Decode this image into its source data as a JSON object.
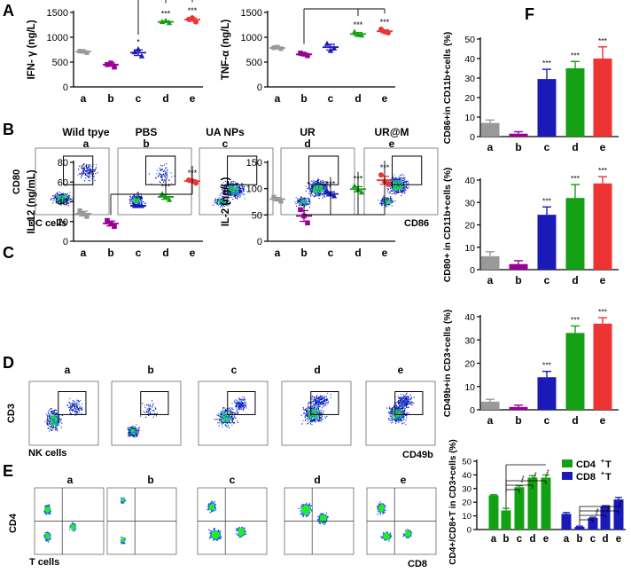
{
  "panel_letters": [
    "A",
    "B",
    "C",
    "D",
    "E",
    "F"
  ],
  "colors": {
    "a": "#999999",
    "b": "#990099",
    "c": "#1a1ab8",
    "d": "#14a014",
    "e": "#ee3333",
    "dot_low": "#0a0a90",
    "dot_mid": "#1a56ff",
    "dot_high": "#22ee22"
  },
  "flow_B": {
    "group_titles": [
      "Wild tpye",
      "PBS",
      "UA NPs",
      "UR",
      "UR@M"
    ],
    "group_letters": [
      "a",
      "b",
      "c",
      "d",
      "e"
    ],
    "ylabel": "CD80",
    "xlabel": "CD86",
    "caption": "DC cells"
  },
  "flow_D": {
    "group_letters": [
      "a",
      "b",
      "c",
      "d",
      "e"
    ],
    "ylabel": "CD3",
    "xlabel": "CD49b",
    "caption": "NK cells"
  },
  "flow_E": {
    "group_letters": [
      "a",
      "b",
      "c",
      "d",
      "e"
    ],
    "ylabel": "CD4",
    "xlabel": "CD8",
    "caption": "T cells"
  },
  "chart_data": [
    {
      "id": "A1",
      "type": "scatter",
      "ylabel": "IFN- γ (ng/L)",
      "ylim": [
        0,
        1500
      ],
      "yticks": [
        0,
        500,
        1000,
        1500
      ],
      "categories": [
        "a",
        "b",
        "c",
        "d",
        "e"
      ],
      "means": [
        710,
        450,
        690,
        1310,
        1355
      ],
      "points": [
        [
          720,
          690,
          715
        ],
        [
          450,
          400,
          480
        ],
        [
          700,
          620,
          760
        ],
        [
          1310,
          1290,
          1330
        ],
        [
          1360,
          1310,
          1390
        ]
      ],
      "sig": [
        "",
        "",
        "*",
        "***",
        "***"
      ]
    },
    {
      "id": "A2",
      "type": "scatter",
      "ylabel": "TNF-α (ng/L)",
      "ylim": [
        0,
        1500
      ],
      "yticks": [
        0,
        500,
        1000,
        1500
      ],
      "categories": [
        "a",
        "b",
        "c",
        "d",
        "e"
      ],
      "means": [
        785,
        655,
        800,
        1065,
        1120
      ],
      "points": [
        [
          790,
          770,
          800
        ],
        [
          680,
          630,
          660
        ],
        [
          870,
          780,
          730
        ],
        [
          1110,
          1040,
          1050
        ],
        [
          1160,
          1090,
          1110
        ]
      ],
      "sig": [
        "",
        "",
        "",
        "***",
        "***"
      ]
    },
    {
      "id": "C1",
      "type": "scatter",
      "ylabel": "IL-12 (ng/mL)",
      "ylim": [
        0,
        80
      ],
      "yticks": [
        0,
        20,
        40,
        60,
        80
      ],
      "categories": [
        "a",
        "b",
        "c",
        "d",
        "e"
      ],
      "means": [
        28,
        18,
        36,
        45,
        61
      ],
      "points": [
        [
          31,
          25,
          28
        ],
        [
          21,
          15,
          18
        ],
        [
          36,
          36,
          36
        ],
        [
          48,
          42,
          45
        ],
        [
          62,
          59,
          61
        ]
      ],
      "sig": [
        "",
        "",
        "**",
        "***",
        "***"
      ]
    },
    {
      "id": "C2",
      "type": "scatter",
      "ylabel": "IL-2 (ng/L)",
      "ylim": [
        0,
        150
      ],
      "yticks": [
        0,
        50,
        100,
        150
      ],
      "categories": [
        "a",
        "b",
        "c",
        "d",
        "e"
      ],
      "means": [
        80,
        48,
        90,
        99,
        116
      ],
      "points": [
        [
          84,
          76,
          80
        ],
        [
          60,
          35,
          48
        ],
        [
          95,
          86,
          90
        ],
        [
          105,
          93,
          99
        ],
        [
          126,
          108,
          114
        ]
      ],
      "sig": [
        "",
        "",
        "***",
        "***",
        "***"
      ]
    },
    {
      "id": "F1",
      "type": "bar",
      "ylabel": "CD86+in CD11b+cells (%)",
      "ylim": [
        0,
        50
      ],
      "yticks": [
        0,
        10,
        20,
        30,
        40,
        50
      ],
      "categories": [
        "a",
        "b",
        "c",
        "d",
        "e"
      ],
      "values": [
        7,
        1.5,
        29.5,
        35,
        40
      ],
      "errors": [
        1.5,
        1,
        5,
        3.5,
        6
      ],
      "sig": [
        "",
        "",
        "***",
        "***",
        "***"
      ]
    },
    {
      "id": "F2",
      "type": "bar",
      "ylabel": "CD80+ in CD11b+cells (%)",
      "ylim": [
        0,
        40
      ],
      "yticks": [
        0,
        10,
        20,
        30,
        40
      ],
      "categories": [
        "a",
        "b",
        "c",
        "d",
        "e"
      ],
      "values": [
        6,
        2.5,
        24.5,
        32,
        38.5
      ],
      "errors": [
        2,
        1.5,
        3.5,
        6,
        3
      ],
      "sig": [
        "",
        "",
        "***",
        "***",
        "***"
      ]
    },
    {
      "id": "F3",
      "type": "bar",
      "ylabel": "CD49b+in CD3+cells (%)",
      "ylim": [
        0,
        40
      ],
      "yticks": [
        0,
        10,
        20,
        30,
        40
      ],
      "categories": [
        "a",
        "b",
        "c",
        "d",
        "e"
      ],
      "values": [
        3.5,
        1.2,
        14,
        33,
        37
      ],
      "errors": [
        1,
        0.8,
        2.5,
        3,
        2.5
      ],
      "sig": [
        "",
        "",
        "***",
        "***",
        "***"
      ]
    },
    {
      "id": "F4",
      "type": "bar",
      "ylabel": "CD4+/CD8+T in CD3+cells (%)",
      "ylim": [
        0,
        50
      ],
      "yticks": [
        0,
        10,
        20,
        30,
        40,
        50
      ],
      "categories": [
        "a",
        "b",
        "c",
        "d",
        "e"
      ],
      "series": [
        {
          "name": "CD4+T",
          "values": [
            25,
            14,
            31,
            38,
            38
          ],
          "errors": [
            0.5,
            1.5,
            1,
            1.5,
            2
          ]
        },
        {
          "name": "CD8+T",
          "values": [
            11.5,
            2,
            8.5,
            17,
            22
          ],
          "errors": [
            1,
            0.5,
            0.5,
            0.5,
            1.5
          ]
        }
      ],
      "sig": [
        "***",
        "***",
        "***",
        "***",
        "***",
        "***",
        "***",
        "***"
      ],
      "legend": [
        "CD4",
        "T",
        "CD8",
        "T"
      ]
    }
  ]
}
